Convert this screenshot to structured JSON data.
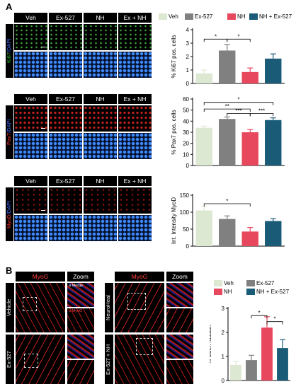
{
  "panels": {
    "a": "A",
    "b": "B"
  },
  "colors": {
    "veh": "#dde8d2",
    "ex": "#808080",
    "nh": "#e8485e",
    "both": "#1a5b78"
  },
  "groups_a": [
    "Veh",
    "Ex-527",
    "NH",
    "Ex + NH"
  ],
  "rows_a": [
    {
      "marker": "Ki67",
      "dapi": "/DAPI"
    },
    {
      "marker": "Pax7",
      "dapi": "/DAPI"
    },
    {
      "marker": "MyoD",
      "dapi": "/DAPI"
    }
  ],
  "legend_a": [
    {
      "label": "Veh",
      "color": "#dde8d2"
    },
    {
      "label": "Ex-527",
      "color": "#808080"
    },
    {
      "label": "NH",
      "color": "#e8485e"
    },
    {
      "label": "NH + Ex-527",
      "color": "#1a5b78"
    }
  ],
  "legend_b": [
    {
      "label": "Veh",
      "color": "#dde8d2"
    },
    {
      "label": "Ex-527",
      "color": "#808080"
    },
    {
      "label": "NH",
      "color": "#e8485e"
    },
    {
      "label": "NH + Ex-527",
      "color": "#1a5b78"
    }
  ],
  "b_headers": {
    "myog": "MyoG",
    "zoom": "Zoom"
  },
  "b_rows_left": [
    "Vehicle",
    "Ex-527"
  ],
  "b_rows_right": [
    "NeuroHeal",
    "Ex-527 + NH"
  ],
  "zoom_labels": {
    "merge": "a Merge",
    "myog": "b MyoG"
  },
  "chart_data": [
    {
      "type": "bar",
      "ylabel": "% Ki67 pos. cells",
      "ylim": [
        0,
        4
      ],
      "yticks": [
        0,
        1,
        2,
        3,
        4
      ],
      "categories": [
        "Veh",
        "Ex-527",
        "NH",
        "NH + Ex-527"
      ],
      "values": [
        0.75,
        2.45,
        0.85,
        1.85
      ],
      "errors": [
        0.25,
        0.45,
        0.3,
        0.35
      ],
      "significance": [
        "*",
        "*"
      ]
    },
    {
      "type": "bar",
      "ylabel": "% Pax7 pos. cells",
      "ylim": [
        0,
        60
      ],
      "yticks": [
        0,
        10,
        20,
        30,
        40,
        50,
        60
      ],
      "categories": [
        "Veh",
        "Ex-527",
        "NH",
        "NH + Ex-527"
      ],
      "values": [
        34,
        42,
        30,
        41
      ],
      "errors": [
        1.5,
        1.8,
        2.5,
        2
      ],
      "significance": [
        "*",
        "**",
        "***",
        "***"
      ]
    },
    {
      "type": "bar",
      "ylabel": "Int. Intensity MyoD",
      "ylim": [
        0,
        150
      ],
      "yticks": [
        0,
        50,
        100,
        150
      ],
      "categories": [
        "Veh",
        "Ex-527",
        "NH",
        "NH + Ex-527"
      ],
      "values": [
        105,
        80,
        43,
        74
      ],
      "errors": [
        12,
        9,
        12,
        7
      ],
      "significance": [
        "*"
      ]
    },
    {
      "type": "bar",
      "ylabel": "% Coef. fussion",
      "ylim": [
        0,
        3
      ],
      "yticks": [
        0,
        1,
        2,
        3
      ],
      "categories": [
        "Veh",
        "Ex-527",
        "NH",
        "NH + Ex-527"
      ],
      "values": [
        0.65,
        0.85,
        2.2,
        1.35
      ],
      "errors": [
        0.15,
        0.2,
        0.45,
        0.35
      ],
      "significance": [
        "*",
        "*"
      ]
    }
  ]
}
